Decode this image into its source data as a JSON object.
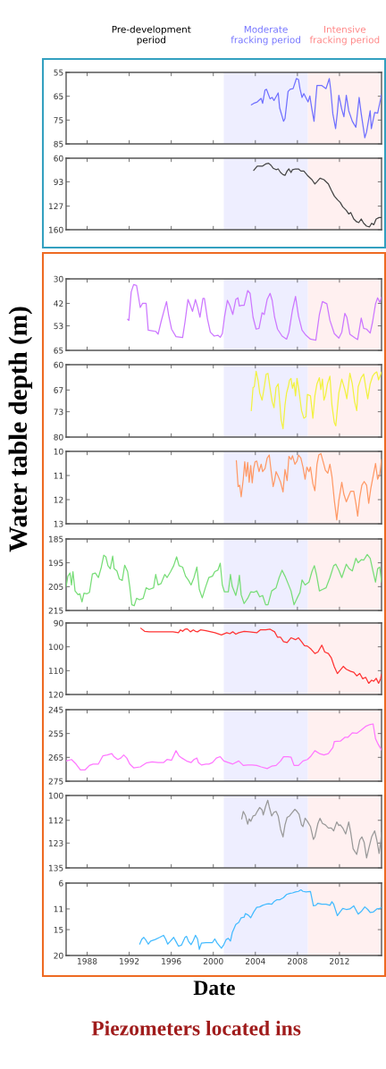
{
  "chart_data": [
    {
      "type": "line",
      "xlim": [
        1986,
        2016
      ],
      "xticks": [
        1988,
        1992,
        1996,
        2000,
        2004,
        2008,
        2012
      ],
      "ylim": [
        85,
        55
      ],
      "yticks": [
        55,
        65,
        75,
        85
      ],
      "tick_labels": "y",
      "annotations": [
        "Pre-development\nperiod"
      ],
      "bands": [
        {
          "axis": "x",
          "from": 2001,
          "to": 2009,
          "color": "#eeeeff",
          "label": "Moderate\nfracking period"
        },
        {
          "axis": "x",
          "from": 2009,
          "to": 2016,
          "color": "#fff0f0",
          "label": "Intensive\nfracking period"
        }
      ],
      "series": [
        {
          "color": "#7070ff",
          "x": [
            2003.62,
            2003.84,
            2004.18,
            2004.55,
            2004.69,
            2004.92,
            2005.06,
            2005.4,
            2005.6,
            2005.77,
            2006.17,
            2006.31,
            2006.68,
            2006.82,
            2007.11,
            2007.31,
            2007.59,
            2007.9,
            2008.1,
            2008.24,
            2008.44,
            2008.61,
            2009.01,
            2009.18,
            2009.38,
            2009.58,
            2009.75,
            2009.86,
            2010.32,
            2010.72,
            2011.03,
            2011.17,
            2011.37,
            2011.63,
            2011.8,
            2011.94,
            2012.22,
            2012.42,
            2012.65,
            2012.88,
            2013.22,
            2013.56,
            2013.87,
            2014.07,
            2014.41,
            2014.58,
            2014.92,
            2015.03,
            2015.35,
            2015.63,
            2016.0
          ],
          "values": [
            68.6,
            68.0,
            67.4,
            65.9,
            68.0,
            62.4,
            62.1,
            66.1,
            65.5,
            66.8,
            63.6,
            69.9,
            75.5,
            74.3,
            63.0,
            62.1,
            61.8,
            57.6,
            58.0,
            61.8,
            65.5,
            63.9,
            67.4,
            64.9,
            70.5,
            75.5,
            66.1,
            60.5,
            60.5,
            61.8,
            57.6,
            62.4,
            72.4,
            78.6,
            71.8,
            64.6,
            70.5,
            73.6,
            64.6,
            71.1,
            75.5,
            78.0,
            65.5,
            72.4,
            82.4,
            79.9,
            71.1,
            78.6,
            71.8,
            72.1,
            64.3
          ]
        }
      ]
    },
    {
      "type": "line",
      "xlim": [
        1986,
        2016
      ],
      "xticks": [
        1988,
        1992,
        1996,
        2000,
        2004,
        2008,
        2012
      ],
      "ylim": [
        160,
        60
      ],
      "yticks": [
        60,
        93,
        127,
        160
      ],
      "tick_labels": "y",
      "bands": [
        {
          "axis": "x",
          "from": 2001,
          "to": 2009,
          "color": "#eeeeff"
        },
        {
          "axis": "x",
          "from": 2009,
          "to": 2016,
          "color": "#fff0f0"
        }
      ],
      "series": [
        {
          "color": "#444444",
          "x": [
            2003.84,
            2004.18,
            2004.69,
            2004.98,
            2005.26,
            2005.49,
            2005.69,
            2005.97,
            2006.17,
            2006.4,
            2006.63,
            2006.82,
            2007.02,
            2007.19,
            2007.39,
            2007.53,
            2007.82,
            2008.1,
            2008.33,
            2008.61,
            2008.95,
            2009.38,
            2009.66,
            2009.86,
            2010.15,
            2010.52,
            2010.94,
            2011.23,
            2011.51,
            2011.8,
            2012.08,
            2012.31,
            2012.65,
            2012.88,
            2013.07,
            2013.36,
            2013.64,
            2013.84,
            2014.07,
            2014.3,
            2014.58,
            2014.86,
            2015.06,
            2015.26,
            2015.49,
            2015.77,
            2016.0
          ],
          "values": [
            77,
            71,
            71,
            68,
            67,
            70,
            74,
            76,
            75,
            80,
            83,
            84,
            78,
            75,
            80,
            76,
            75,
            75,
            78,
            78,
            84,
            90,
            96,
            93,
            88,
            90,
            96,
            105,
            113,
            118,
            122,
            128,
            133,
            138,
            136,
            145,
            149,
            150,
            145,
            151,
            155,
            156,
            151,
            153,
            145,
            143,
            143
          ]
        }
      ]
    },
    {
      "type": "line",
      "xlim": [
        1986,
        2016
      ],
      "xticks": [
        1988,
        1992,
        1996,
        2000,
        2004,
        2008,
        2012
      ],
      "ylim": [
        65,
        30
      ],
      "yticks": [
        30,
        42,
        53,
        65
      ],
      "tick_labels": "y",
      "bands": [
        {
          "axis": "x",
          "from": 2001,
          "to": 2009,
          "color": "#eeeeff"
        },
        {
          "axis": "x",
          "from": 2009,
          "to": 2016,
          "color": "#fff0f0"
        }
      ],
      "series": [
        {
          "color": "#cc77ff",
          "x": [
            1991.85,
            1991.97,
            1992.19,
            1992.42,
            1992.7,
            1992.9,
            1993.05,
            1993.27,
            1993.61,
            1993.81,
            1994.18,
            1994.52,
            1994.75,
            1995.03,
            1995.26,
            1995.55,
            1995.74,
            1996.03,
            1996.45,
            1997.08,
            1997.31,
            1997.59,
            1997.82,
            1998.02,
            1998.3,
            1998.5,
            1998.73,
            1999.01,
            1999.15,
            1999.44,
            1999.72,
            2000.09,
            2000.43,
            2000.66,
            2000.86,
            2001.06,
            2001.34,
            2001.57,
            2001.85,
            2002.14,
            2002.34,
            2002.48,
            2002.7,
            2002.93,
            2003.27,
            2003.5,
            2003.78,
            2004.07,
            2004.35,
            2004.64,
            2004.84,
            2005.12,
            2005.4,
            2005.6,
            2005.83,
            2006.11,
            2006.54,
            2006.97,
            2007.19,
            2007.53,
            2007.82,
            2008.1,
            2008.44,
            2008.81,
            2009.24,
            2009.75,
            2010.09,
            2010.38,
            2010.8,
            2011.09,
            2011.51,
            2011.94,
            2012.22,
            2012.51,
            2012.7,
            2012.99,
            2013.5,
            2013.73,
            2014.07,
            2014.3,
            2014.58,
            2014.92,
            2015.15,
            2015.43,
            2015.63,
            2015.83,
            2016.0
          ],
          "values": [
            49.8,
            50.3,
            36.4,
            32.8,
            33.2,
            39.3,
            44.0,
            42.0,
            42.0,
            55.1,
            55.4,
            55.7,
            57.1,
            51.0,
            46.6,
            41.1,
            47.4,
            54.6,
            58.3,
            58.7,
            51.0,
            40.1,
            43.0,
            45.9,
            40.1,
            43.7,
            48.8,
            39.6,
            39.6,
            49.5,
            56.1,
            58.0,
            57.6,
            58.6,
            56.8,
            48.8,
            40.5,
            43.0,
            47.4,
            40.1,
            39.3,
            43.3,
            43.0,
            43.0,
            35.7,
            37.1,
            48.8,
            54.6,
            54.2,
            46.6,
            47.4,
            40.1,
            37.1,
            40.5,
            48.8,
            54.6,
            58.0,
            59.5,
            56.1,
            45.2,
            38.6,
            48.1,
            55.1,
            57.6,
            59.5,
            60.0,
            47.4,
            41.1,
            42.2,
            50.3,
            56.8,
            59.0,
            56.1,
            46.9,
            48.8,
            57.1,
            59.0,
            59.7,
            49.2,
            54.2,
            54.6,
            56.5,
            51.0,
            42.2,
            39.3,
            41.5,
            38.9
          ]
        }
      ]
    },
    {
      "type": "line",
      "xlim": [
        1986,
        2016
      ],
      "xticks": [
        1988,
        1992,
        1996,
        2000,
        2004,
        2008,
        2012
      ],
      "ylim": [
        80,
        60
      ],
      "yticks": [
        60,
        67,
        73,
        80
      ],
      "tick_labels": "y",
      "ylabel": "Water table depth (m)",
      "bands": [
        {
          "axis": "x",
          "from": 2001,
          "to": 2009,
          "color": "#eeeeff"
        },
        {
          "axis": "x",
          "from": 2009,
          "to": 2016,
          "color": "#fff0f0"
        }
      ],
      "series": [
        {
          "color": "#f2f240",
          "x": [
            2003.61,
            2003.78,
            2003.9,
            2004.07,
            2004.27,
            2004.41,
            2004.64,
            2004.84,
            2005.03,
            2005.2,
            2005.4,
            2005.6,
            2005.77,
            2005.97,
            2006.17,
            2006.34,
            2006.45,
            2006.63,
            2006.82,
            2006.97,
            2007.11,
            2007.25,
            2007.39,
            2007.53,
            2007.68,
            2007.82,
            2007.96,
            2008.16,
            2008.39,
            2008.61,
            2008.81,
            2008.95,
            2009.24,
            2009.47,
            2009.66,
            2009.86,
            2010.09,
            2010.23,
            2010.38,
            2010.52,
            2010.66,
            2010.86,
            2011.09,
            2011.28,
            2011.51,
            2011.65,
            2011.94,
            2012.22,
            2012.51,
            2012.7,
            2012.99,
            2013.22,
            2013.44,
            2013.64,
            2013.78,
            2014.07,
            2014.3,
            2014.49,
            2014.69,
            2014.92,
            2015.15,
            2015.35,
            2015.55,
            2015.72,
            2016.0
          ],
          "values": [
            72.7,
            66.3,
            66.1,
            61.8,
            64.5,
            67.8,
            69.8,
            66.3,
            62.6,
            62.4,
            66.5,
            70.2,
            71.9,
            66.3,
            65.3,
            71.1,
            75.2,
            77.7,
            71.1,
            67.8,
            66.3,
            64.3,
            63.8,
            66.5,
            64.9,
            68.6,
            63.8,
            67.4,
            72.7,
            74.8,
            74.4,
            68.2,
            68.6,
            74.8,
            68.6,
            65.3,
            63.6,
            66.9,
            64.0,
            69.8,
            68.6,
            65.3,
            63.2,
            71.1,
            76.0,
            76.9,
            67.8,
            64.0,
            66.9,
            69.4,
            62.4,
            65.3,
            70.2,
            72.7,
            66.1,
            63.6,
            62.6,
            66.1,
            69.4,
            65.3,
            63.2,
            62.4,
            62.0,
            64.2,
            62.0
          ]
        }
      ]
    },
    {
      "type": "line",
      "xlim": [
        1986,
        2016
      ],
      "xticks": [
        1988,
        1992,
        1996,
        2000,
        2004,
        2008,
        2012
      ],
      "ylim": [
        13,
        10
      ],
      "yticks": [
        10,
        11,
        12,
        13
      ],
      "tick_labels": "y",
      "bands": [
        {
          "axis": "x",
          "from": 2001,
          "to": 2009,
          "color": "#eeeeff"
        },
        {
          "axis": "x",
          "from": 2009,
          "to": 2016,
          "color": "#fff0f0"
        }
      ],
      "series": [
        {
          "color": "#ff9966",
          "x": [
            2002.19,
            2002.36,
            2002.51,
            2002.65,
            2002.85,
            2002.99,
            2003.13,
            2003.27,
            2003.41,
            2003.56,
            2003.7,
            2003.84,
            2003.98,
            2004.13,
            2004.35,
            2004.55,
            2004.69,
            2004.92,
            2005.12,
            2005.32,
            2005.49,
            2005.69,
            2005.83,
            2005.97,
            2006.17,
            2006.4,
            2006.63,
            2006.82,
            2007.02,
            2007.19,
            2007.39,
            2007.53,
            2007.76,
            2007.96,
            2008.1,
            2008.33,
            2008.53,
            2008.73,
            2008.9,
            2009.1,
            2009.24,
            2009.47,
            2009.66,
            2009.86,
            2010.03,
            2010.23,
            2010.43,
            2010.66,
            2010.89,
            2011.09,
            2011.28,
            2011.51,
            2011.74,
            2011.94,
            2012.22,
            2012.42,
            2012.65,
            2012.88,
            2013.07,
            2013.36,
            2013.56,
            2013.73,
            2013.93,
            2014.13,
            2014.35,
            2014.58,
            2014.78,
            2014.98,
            2015.2,
            2015.43,
            2015.63,
            2015.83,
            2016.0
          ],
          "values": [
            10.38,
            11.46,
            11.4,
            11.88,
            11.15,
            10.43,
            11.03,
            10.46,
            11.28,
            10.59,
            11.3,
            10.71,
            10.43,
            10.4,
            10.84,
            10.53,
            10.84,
            10.71,
            10.28,
            10.15,
            10.78,
            11.46,
            11.21,
            10.84,
            11.03,
            11.28,
            11.68,
            10.75,
            11.21,
            10.21,
            10.34,
            10.18,
            10.53,
            10.4,
            10.15,
            10.28,
            10.65,
            11.15,
            10.65,
            10.84,
            10.65,
            11.34,
            11.63,
            10.53,
            10.15,
            10.09,
            10.4,
            10.78,
            10.9,
            10.53,
            11.03,
            12.03,
            12.84,
            12.03,
            11.28,
            11.78,
            12.09,
            11.84,
            11.65,
            11.65,
            12.15,
            12.68,
            11.9,
            11.4,
            11.25,
            11.4,
            12.15,
            11.53,
            11.03,
            10.5,
            11.15,
            10.96,
            10.34
          ]
        }
      ]
    },
    {
      "type": "line",
      "xlim": [
        1986,
        2016
      ],
      "xticks": [
        1988,
        1992,
        1996,
        2000,
        2004,
        2008,
        2012
      ],
      "ylim": [
        215,
        185
      ],
      "yticks": [
        185,
        195,
        205,
        215
      ],
      "tick_labels": "y",
      "bands": [
        {
          "axis": "x",
          "from": 2001,
          "to": 2009,
          "color": "#eeeeff"
        },
        {
          "axis": "x",
          "from": 2009,
          "to": 2016,
          "color": "#fff0f0"
        }
      ],
      "series": [
        {
          "color": "#77dd77",
          "x": [
            1986.0,
            1986.17,
            1986.37,
            1986.51,
            1986.65,
            1986.85,
            1987.14,
            1987.31,
            1987.51,
            1987.7,
            1987.99,
            1988.22,
            1988.5,
            1988.78,
            1989.07,
            1989.35,
            1989.58,
            1989.78,
            1989.98,
            1990.2,
            1990.43,
            1990.57,
            1990.83,
            1991.06,
            1991.34,
            1991.57,
            1991.85,
            1992.05,
            1992.25,
            1992.48,
            1992.7,
            1992.99,
            1993.33,
            1993.61,
            1993.9,
            1994.32,
            1994.52,
            1994.75,
            1995.03,
            1995.38,
            1995.6,
            1995.94,
            1996.23,
            1996.51,
            1996.74,
            1997.08,
            1997.36,
            1997.65,
            1997.88,
            1998.16,
            1998.44,
            1998.67,
            1998.95,
            1999.24,
            1999.57,
            1999.92,
            2000.14,
            2000.43,
            2000.66,
            2000.86,
            2001.06,
            2001.43,
            2001.63,
            2001.8,
            2002.14,
            2002.36,
            2002.48,
            2002.65,
            2002.93,
            2003.27,
            2003.56,
            2003.84,
            2004.13,
            2004.41,
            2004.69,
            2004.98,
            2005.2,
            2005.55,
            2005.97,
            2006.26,
            2006.54,
            2006.82,
            2007.11,
            2007.39,
            2007.68,
            2007.96,
            2008.24,
            2008.44,
            2008.73,
            2009.1,
            2009.38,
            2009.61,
            2009.81,
            2010.09,
            2010.38,
            2010.72,
            2011.09,
            2011.45,
            2011.65,
            2011.94,
            2012.22,
            2012.65,
            2012.93,
            2013.22,
            2013.56,
            2013.78,
            2014.07,
            2014.3,
            2014.64,
            2014.92,
            2015.2,
            2015.43,
            2015.63,
            2015.83,
            2016.0
          ],
          "values": [
            204.9,
            200.6,
            199.3,
            204.3,
            198.7,
            206.8,
            208.4,
            208.0,
            211.4,
            207.7,
            208.0,
            207.4,
            199.7,
            199.3,
            201.2,
            196.8,
            191.8,
            192.5,
            196.2,
            197.5,
            192.2,
            197.5,
            198.4,
            201.8,
            202.4,
            196.0,
            198.7,
            204.9,
            212.6,
            213.0,
            209.9,
            210.5,
            209.9,
            205.5,
            206.2,
            205.5,
            199.9,
            204.3,
            203.7,
            199.9,
            201.2,
            198.7,
            196.2,
            192.5,
            196.2,
            196.8,
            200.6,
            202.4,
            204.3,
            201.2,
            196.8,
            206.2,
            209.7,
            205.5,
            201.2,
            200.6,
            198.7,
            198.1,
            195.2,
            204.3,
            207.2,
            207.2,
            199.9,
            204.9,
            208.7,
            204.3,
            200.2,
            208.4,
            212.1,
            209.9,
            207.2,
            207.4,
            206.8,
            209.3,
            208.7,
            212.6,
            212.6,
            206.8,
            205.5,
            201.2,
            198.1,
            200.6,
            203.7,
            206.8,
            212.6,
            209.9,
            207.4,
            202.2,
            204.3,
            203.1,
            198.7,
            196.2,
            199.9,
            206.8,
            206.2,
            205.5,
            201.2,
            196.2,
            195.6,
            198.1,
            201.2,
            195.6,
            197.5,
            198.4,
            193.1,
            195.0,
            193.7,
            193.9,
            191.5,
            193.1,
            198.7,
            203.1,
            197.5,
            196.8,
            203.1
          ]
        }
      ]
    },
    {
      "type": "line",
      "xlim": [
        1986,
        2016
      ],
      "xticks": [
        1988,
        1992,
        1996,
        2000,
        2004,
        2008,
        2012
      ],
      "ylim": [
        120,
        90
      ],
      "yticks": [
        90,
        100,
        110,
        120
      ],
      "tick_labels": "y",
      "bands": [
        {
          "axis": "x",
          "from": 2001,
          "to": 2009,
          "color": "#eeeeff"
        },
        {
          "axis": "x",
          "from": 2009,
          "to": 2016,
          "color": "#fff0f0"
        }
      ],
      "series": [
        {
          "color": "#ff3333",
          "x": [
            1993.1,
            1993.47,
            1993.9,
            1995.03,
            1996.17,
            1996.68,
            1996.88,
            1997.08,
            1997.31,
            1997.53,
            1997.82,
            1998.1,
            1998.3,
            1998.5,
            1998.78,
            1999.3,
            2000.15,
            2000.77,
            2001.28,
            2001.57,
            2001.85,
            2002.14,
            2002.42,
            2002.93,
            2003.41,
            2004.13,
            2004.47,
            2004.98,
            2005.4,
            2005.83,
            2006.11,
            2006.4,
            2006.68,
            2007.02,
            2007.39,
            2007.82,
            2008.1,
            2008.39,
            2008.67,
            2008.95,
            2009.3,
            2009.66,
            2009.95,
            2010.32,
            2010.6,
            2010.94,
            2011.23,
            2011.51,
            2011.8,
            2012.08,
            2012.36,
            2012.65,
            2013.07,
            2013.36,
            2013.64,
            2013.93,
            2014.21,
            2014.49,
            2014.78,
            2015.06,
            2015.26,
            2015.49,
            2015.72,
            2015.91,
            2016.0
          ],
          "values": [
            92.2,
            93.5,
            93.7,
            93.7,
            93.7,
            94.1,
            92.9,
            93.5,
            92.6,
            92.5,
            93.7,
            92.9,
            93.5,
            93.7,
            92.9,
            93.2,
            94.1,
            95.0,
            94.1,
            94.5,
            93.7,
            94.7,
            94.1,
            93.5,
            93.7,
            94.1,
            92.9,
            92.9,
            92.6,
            93.7,
            96.0,
            96.0,
            97.8,
            98.2,
            96.2,
            97.0,
            96.2,
            97.8,
            99.5,
            99.7,
            101.0,
            102.8,
            102.2,
            99.3,
            102.2,
            102.8,
            104.7,
            108.4,
            111.2,
            109.7,
            108.2,
            109.4,
            110.3,
            110.7,
            112.2,
            111.2,
            113.4,
            112.8,
            115.3,
            114.0,
            114.4,
            113.2,
            115.3,
            113.4,
            111.5
          ]
        }
      ]
    },
    {
      "type": "line",
      "xlim": [
        1986,
        2016
      ],
      "xticks": [
        1988,
        1992,
        1996,
        2000,
        2004,
        2008,
        2012
      ],
      "ylim": [
        275,
        245
      ],
      "yticks": [
        245,
        255,
        265,
        275
      ],
      "tick_labels": "y",
      "bands": [
        {
          "axis": "x",
          "from": 2001,
          "to": 2009,
          "color": "#eeeeff"
        },
        {
          "axis": "x",
          "from": 2009,
          "to": 2016,
          "color": "#fff0f0"
        }
      ],
      "series": [
        {
          "color": "#ff77ff",
          "x": [
            1986.0,
            1986.51,
            1986.94,
            1987.36,
            1987.79,
            1988.22,
            1988.56,
            1989.07,
            1989.49,
            1989.92,
            1990.35,
            1990.55,
            1990.91,
            1991.2,
            1991.48,
            1991.77,
            1992.05,
            1992.42,
            1993.05,
            1993.61,
            1994.18,
            1994.75,
            1995.26,
            1995.6,
            1996.03,
            1996.45,
            1996.74,
            1997.02,
            1997.45,
            1997.88,
            1998.16,
            1998.44,
            1998.59,
            1998.87,
            1999.3,
            1999.58,
            1999.92,
            2000.29,
            2000.66,
            2001.0,
            2001.43,
            2001.85,
            2002.42,
            2002.85,
            2003.27,
            2003.7,
            2004.13,
            2004.55,
            2005.12,
            2005.55,
            2005.97,
            2006.4,
            2006.68,
            2007.11,
            2007.39,
            2007.68,
            2008.1,
            2008.53,
            2008.95,
            2009.24,
            2009.66,
            2010.09,
            2010.52,
            2010.94,
            2011.37,
            2011.51,
            2012.08,
            2012.51,
            2012.79,
            2013.22,
            2013.64,
            2014.07,
            2014.49,
            2014.92,
            2015.2,
            2015.43,
            2015.63,
            2016.0
          ],
          "values": [
            266.5,
            265.9,
            267.8,
            270.3,
            270.3,
            268.4,
            267.8,
            267.8,
            264.4,
            264.0,
            263.4,
            264.7,
            265.9,
            265.3,
            264.0,
            265.3,
            267.8,
            269.4,
            269.0,
            267.4,
            266.9,
            267.2,
            267.2,
            265.9,
            266.2,
            262.2,
            264.4,
            265.3,
            266.5,
            267.2,
            265.9,
            265.3,
            267.2,
            268.2,
            267.8,
            267.8,
            267.2,
            265.3,
            264.7,
            266.5,
            267.2,
            267.8,
            266.5,
            268.4,
            268.2,
            268.2,
            268.4,
            269.0,
            269.7,
            268.7,
            268.4,
            266.5,
            264.7,
            264.7,
            264.9,
            268.4,
            268.4,
            266.5,
            265.9,
            264.7,
            262.2,
            263.4,
            264.0,
            263.4,
            260.9,
            258.4,
            258.2,
            256.6,
            256.6,
            254.7,
            254.9,
            253.5,
            252.0,
            251.2,
            251.0,
            257.2,
            259.1,
            261.9
          ]
        }
      ]
    },
    {
      "type": "line",
      "xlim": [
        1986,
        2016
      ],
      "xticks": [
        1988,
        1992,
        1996,
        2000,
        2004,
        2008,
        2012
      ],
      "ylim": [
        135,
        100
      ],
      "yticks": [
        100,
        112,
        123,
        135
      ],
      "tick_labels": "y",
      "bands": [
        {
          "axis": "x",
          "from": 2001,
          "to": 2009,
          "color": "#eeeeff"
        },
        {
          "axis": "x",
          "from": 2009,
          "to": 2016,
          "color": "#fff0f0"
        }
      ],
      "series": [
        {
          "color": "#999999",
          "x": [
            2002.7,
            2002.85,
            2003.05,
            2003.27,
            2003.41,
            2003.56,
            2003.78,
            2003.98,
            2004.18,
            2004.41,
            2004.64,
            2004.75,
            2004.98,
            2005.18,
            2005.32,
            2005.55,
            2005.77,
            2005.97,
            2006.17,
            2006.4,
            2006.63,
            2006.82,
            2007.02,
            2007.25,
            2007.48,
            2007.76,
            2007.96,
            2008.16,
            2008.39,
            2008.53,
            2008.73,
            2008.95,
            2009.24,
            2009.52,
            2009.66,
            2009.95,
            2010.15,
            2010.38,
            2010.66,
            2010.94,
            2011.23,
            2011.45,
            2011.74,
            2011.94,
            2012.08,
            2012.31,
            2012.59,
            2012.88,
            2013.07,
            2013.3,
            2013.64,
            2013.93,
            2014.13,
            2014.35,
            2014.58,
            2014.78,
            2015.06,
            2015.35,
            2015.55,
            2015.77,
            2015.91,
            2016.0
          ],
          "values": [
            111.3,
            107.7,
            109.6,
            113.9,
            111.3,
            112.5,
            109.9,
            109.6,
            107.7,
            105.8,
            107.0,
            109.4,
            105.2,
            102.3,
            105.5,
            109.9,
            108.1,
            107.7,
            109.9,
            116.4,
            120.0,
            114.2,
            110.6,
            109.9,
            108.4,
            106.7,
            107.7,
            109.1,
            114.2,
            115.0,
            111.0,
            112.5,
            115.0,
            121.2,
            120.0,
            113.5,
            111.0,
            113.5,
            114.2,
            115.7,
            115.7,
            117.1,
            112.8,
            114.5,
            114.2,
            115.7,
            118.6,
            112.8,
            117.9,
            125.8,
            128.5,
            121.5,
            120.0,
            122.7,
            130.2,
            125.8,
            120.0,
            117.1,
            121.5,
            128.0,
            122.9,
            117.9
          ]
        }
      ]
    },
    {
      "type": "line",
      "xlim": [
        1986,
        2016
      ],
      "xticks": [
        1988,
        1992,
        1996,
        2000,
        2004,
        2008,
        2012
      ],
      "ylim": [
        20,
        6
      ],
      "yticks": [
        6,
        11,
        15,
        20
      ],
      "xlabel": "Date",
      "annotations": [
        "Piezometers located ins"
      ],
      "bands": [
        {
          "axis": "x",
          "from": 2001,
          "to": 2009,
          "color": "#eeeeff"
        },
        {
          "axis": "x",
          "from": 2009,
          "to": 2016,
          "color": "#fff0f0"
        }
      ],
      "series": [
        {
          "color": "#44bbff",
          "x": [
            1993.0,
            1993.19,
            1993.39,
            1993.61,
            1993.81,
            1994.04,
            1994.47,
            1994.89,
            1995.26,
            1995.46,
            1995.66,
            1995.89,
            1996.23,
            1996.45,
            1996.68,
            1996.97,
            1997.31,
            1997.45,
            1997.65,
            1997.88,
            1998.1,
            1998.3,
            1998.5,
            1998.67,
            1998.87,
            1999.3,
            1999.92,
            2000.14,
            2000.37,
            2000.77,
            2001.0,
            2001.23,
            2001.43,
            2001.63,
            2001.8,
            2002.14,
            2002.42,
            2002.65,
            2002.93,
            2003.05,
            2003.33,
            2003.56,
            2003.84,
            2004.13,
            2004.41,
            2004.69,
            2004.98,
            2005.26,
            2005.55,
            2005.77,
            2006.06,
            2006.34,
            2006.68,
            2006.97,
            2007.25,
            2007.53,
            2007.82,
            2008.1,
            2008.33,
            2008.53,
            2008.81,
            2009.24,
            2009.52,
            2009.75,
            2009.95,
            2010.32,
            2010.72,
            2011.09,
            2011.28,
            2011.45,
            2011.8,
            2012.08,
            2012.31,
            2012.65,
            2012.99,
            2013.36,
            2013.78,
            2014.07,
            2014.41,
            2014.69,
            2014.92,
            2015.2,
            2015.55,
            2015.83,
            2016.0
          ],
          "values": [
            17.8,
            16.9,
            16.5,
            17.1,
            17.8,
            17.2,
            16.9,
            16.5,
            16.1,
            16.8,
            17.8,
            17.3,
            16.5,
            17.3,
            18.2,
            18.0,
            16.5,
            16.3,
            17.3,
            17.9,
            17.1,
            16.1,
            16.8,
            18.8,
            17.6,
            17.5,
            17.5,
            16.8,
            17.6,
            18.6,
            17.9,
            16.9,
            16.7,
            17.2,
            15.6,
            14.0,
            13.6,
            12.7,
            12.6,
            11.9,
            12.2,
            12.7,
            11.6,
            10.7,
            10.6,
            10.3,
            10.1,
            10.0,
            10.1,
            9.6,
            9.2,
            9.2,
            8.8,
            8.2,
            8.0,
            7.9,
            7.7,
            7.6,
            7.3,
            7.6,
            7.7,
            7.6,
            10.4,
            10.3,
            9.9,
            10.1,
            10.1,
            10.3,
            9.6,
            10.1,
            12.3,
            11.5,
            10.9,
            11.1,
            11.0,
            10.4,
            12.0,
            11.5,
            10.6,
            11.1,
            11.7,
            11.6,
            11.0,
            10.9,
            10.7
          ]
        }
      ]
    }
  ]
}
